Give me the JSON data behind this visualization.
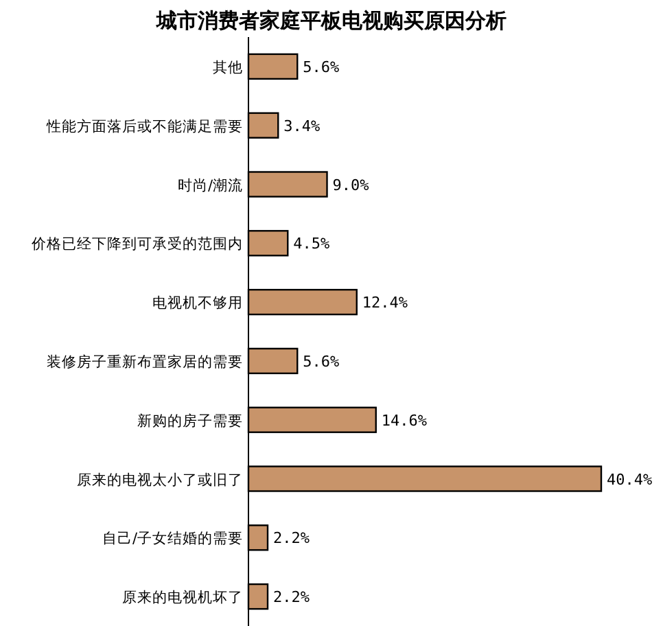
{
  "chart_data": {
    "type": "bar",
    "orientation": "horizontal",
    "title": "城市消费者家庭平板电视购买原因分析",
    "categories": [
      "其他",
      "性能方面落后或不能满足需要",
      "时尚/潮流",
      "价格已经下降到可承受的范围内",
      "电视机不够用",
      "装修房子重新布置家居的需要",
      "新购的房子需要",
      "原来的电视太小了或旧了",
      "自己/子女结婚的需要",
      "原来的电视机坏了"
    ],
    "values": [
      5.6,
      3.4,
      9.0,
      4.5,
      12.4,
      5.6,
      14.6,
      40.4,
      2.2,
      2.2
    ],
    "value_labels": [
      "5.6%",
      "3.4%",
      "9.0%",
      "4.5%",
      "12.4%",
      "5.6%",
      "14.6%",
      "40.4%",
      "2.2%",
      "2.2%"
    ],
    "color": "#c8946a"
  }
}
